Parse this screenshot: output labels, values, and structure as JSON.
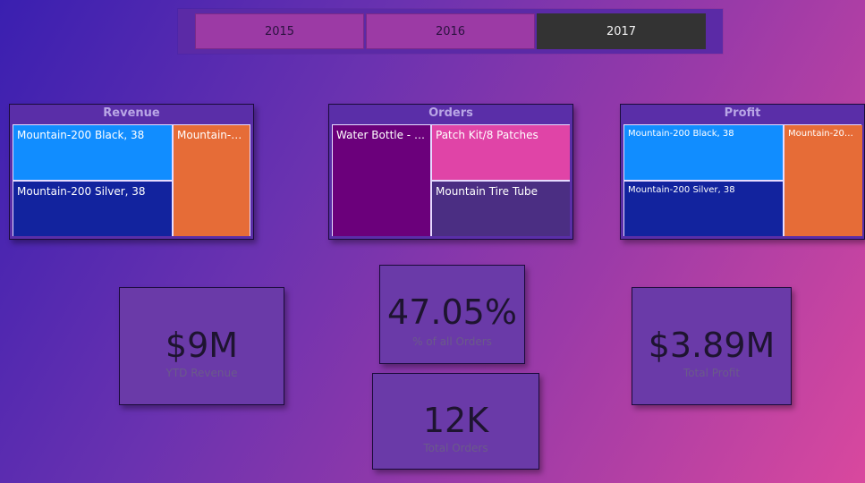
{
  "slicer": {
    "years": [
      "2015",
      "2016",
      "2017"
    ],
    "selected": "2017"
  },
  "treemaps": {
    "revenue": {
      "title": "Revenue",
      "tiles": [
        "Mountain-200 Black, 38",
        "Mountain-200 Silver, 38",
        "Mountain-20..."
      ]
    },
    "orders": {
      "title": "Orders",
      "tiles": [
        "Water Bottle - 30...",
        "Patch Kit/8 Patches",
        "Mountain Tire Tube"
      ]
    },
    "profit": {
      "title": "Profit",
      "tiles": [
        "Mountain-200 Black, 38",
        "Mountain-200 Silver, 38",
        "Mountain-200 S..."
      ]
    }
  },
  "kpis": {
    "ytd_revenue": {
      "value": "$9M",
      "label": "YTD Revenue"
    },
    "pct_orders": {
      "value": "47.05%",
      "label": "% of all Orders"
    },
    "total_profit": {
      "value": "$3.89M",
      "label": "Total Profit"
    },
    "total_orders": {
      "value": "12K",
      "label": "Total Orders"
    }
  },
  "colors": {
    "blue": "#118dff",
    "dark_blue": "#12239e",
    "orange": "#e66c37",
    "purple": "#6b007b",
    "pink": "#e044a7",
    "violet": "#4b2e83",
    "selected_year": "#333333"
  }
}
